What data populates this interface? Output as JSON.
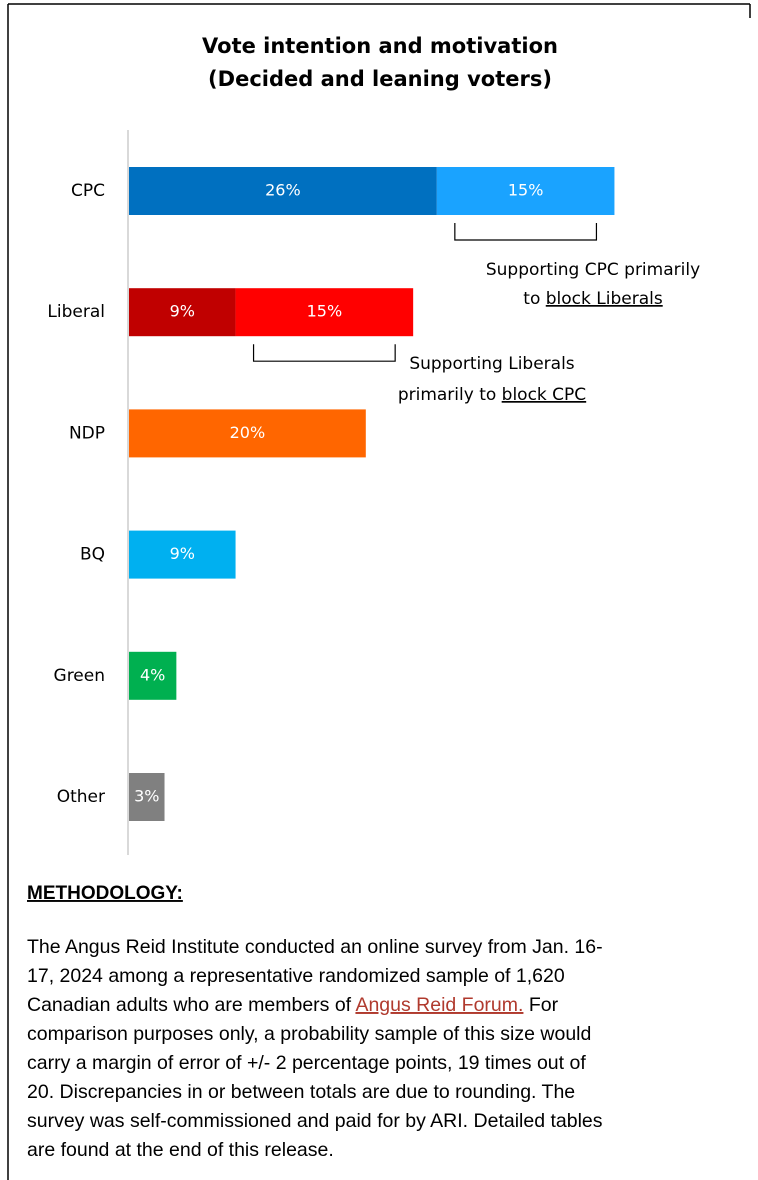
{
  "chart_data": {
    "type": "stacked-bar-horizontal",
    "title": [
      "Vote intention and motivation",
      "(Decided and leaning voters)"
    ],
    "categories": [
      "CPC",
      "Liberal",
      "NDP",
      "BQ",
      "Green",
      "Other"
    ],
    "series": [
      {
        "values": [
          26,
          9,
          20,
          9,
          4,
          3
        ],
        "value_labels": [
          "26%",
          "9%",
          "20%",
          "9%",
          "4%",
          "3%"
        ],
        "colors": [
          "#0070c0",
          "#c00000",
          "#ff6600",
          "#00b0f0",
          "#00b050",
          "#808080"
        ]
      },
      {
        "values": [
          15,
          15,
          null,
          null,
          null,
          null
        ],
        "value_labels": [
          "15%",
          "15%",
          null,
          null,
          null,
          null
        ],
        "colors": [
          "#1aa3ff",
          "#ff0000",
          null,
          null,
          null,
          null
        ]
      }
    ],
    "annotations": [
      {
        "lines": [
          "Supporting CPC primarily",
          "to "
        ],
        "underlined": "block Liberals"
      },
      {
        "lines": [
          "Supporting Liberals",
          "primarily to "
        ],
        "underlined": "block CPC"
      }
    ]
  },
  "methodology": {
    "heading": "METHODOLOGY:",
    "lines": [
      "The Angus Reid Institute conducted an online survey from Jan. 16-",
      "17, 2024 among a representative randomized sample of 1,620",
      {
        "before": "Canadian adults who are members of ",
        "link": "Angus Reid Forum.",
        "after": " For"
      },
      "comparison purposes only, a probability sample of this size would",
      "carry a margin of error of +/- 2 percentage points, 19 times out of",
      "20. Discrepancies in or between totals are due to rounding. The",
      "survey was self-commissioned and paid for by ARI. Detailed tables",
      "are found at the end of this release."
    ]
  }
}
